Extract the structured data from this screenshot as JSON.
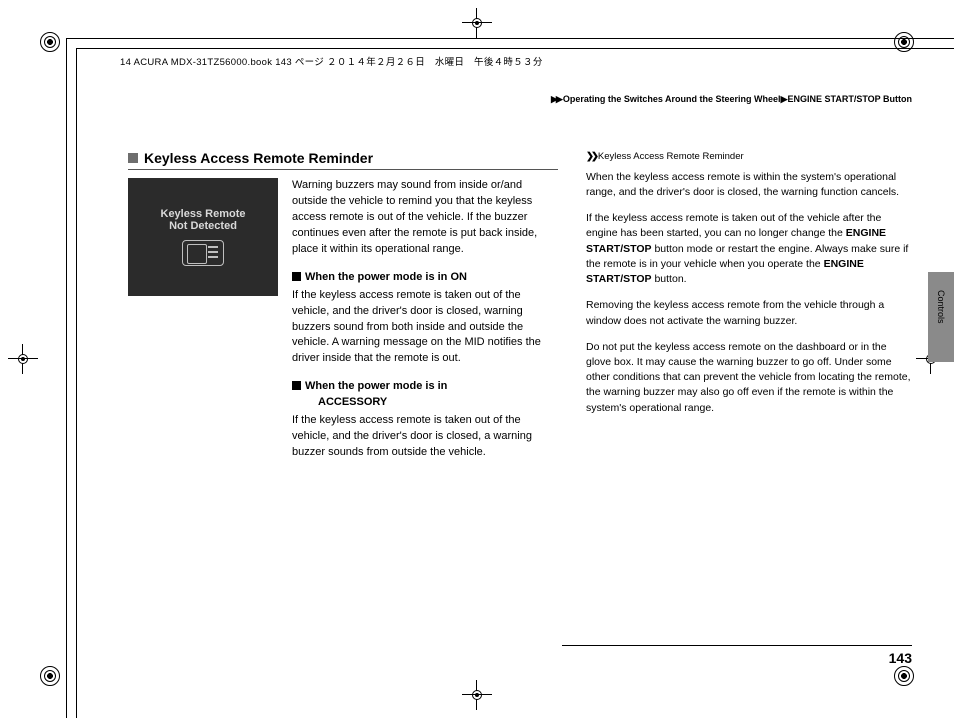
{
  "source_line": "14 ACURA MDX-31TZ56000.book  143 ページ  ２０１４年２月２６日　水曜日　午後４時５３分",
  "breadcrumb": {
    "arrow": "▶▶",
    "seg1": "Operating the Switches Around the Steering Wheel",
    "sep": "▶",
    "seg2": "ENGINE START/STOP Button"
  },
  "section_title": "Keyless Access Remote Reminder",
  "thumb_line1": "Keyless Remote",
  "thumb_line2": "Not Detected",
  "intro": "Warning buzzers may sound from inside or/and outside the vehicle to remind you that the keyless access remote is out of the vehicle. If the buzzer continues even after the remote is put back inside, place it within its operational range.",
  "sub1_title": "When the power mode is in ON",
  "sub1_body": "If the keyless access remote is taken out of the vehicle, and the driver's door is closed, warning buzzers sound from both inside and outside the vehicle. A warning message on the MID notifies the driver inside that the remote is out.",
  "sub2_title_a": "When the power mode is in",
  "sub2_title_b": "ACCESSORY",
  "sub2_body": "If the keyless access remote is taken out of the vehicle, and the driver's door is closed, a warning buzzer sounds from outside the vehicle.",
  "side_title": "Keyless Access Remote Reminder",
  "r1": "When the keyless access remote is within the system's operational range, and the driver's door is closed, the warning function cancels.",
  "r2a": "If the keyless access remote is taken out of the vehicle after the engine has been started, you can no longer change the ",
  "r2b": "ENGINE START/STOP",
  "r2c": " button mode or restart the engine. Always make sure if the remote is in your vehicle when you operate the ",
  "r2d": "ENGINE START/STOP",
  "r2e": " button.",
  "r3": "Removing the keyless access remote from the vehicle through a window does not activate the warning buzzer.",
  "r4": "Do not put the keyless access remote on the dashboard or in the glove box. It may cause the warning buzzer to go off. Under some other conditions that can prevent the vehicle from locating the remote, the warning buzzer may also go off even if the remote is within the system's operational range.",
  "tab_label": "Controls",
  "page_number": "143"
}
